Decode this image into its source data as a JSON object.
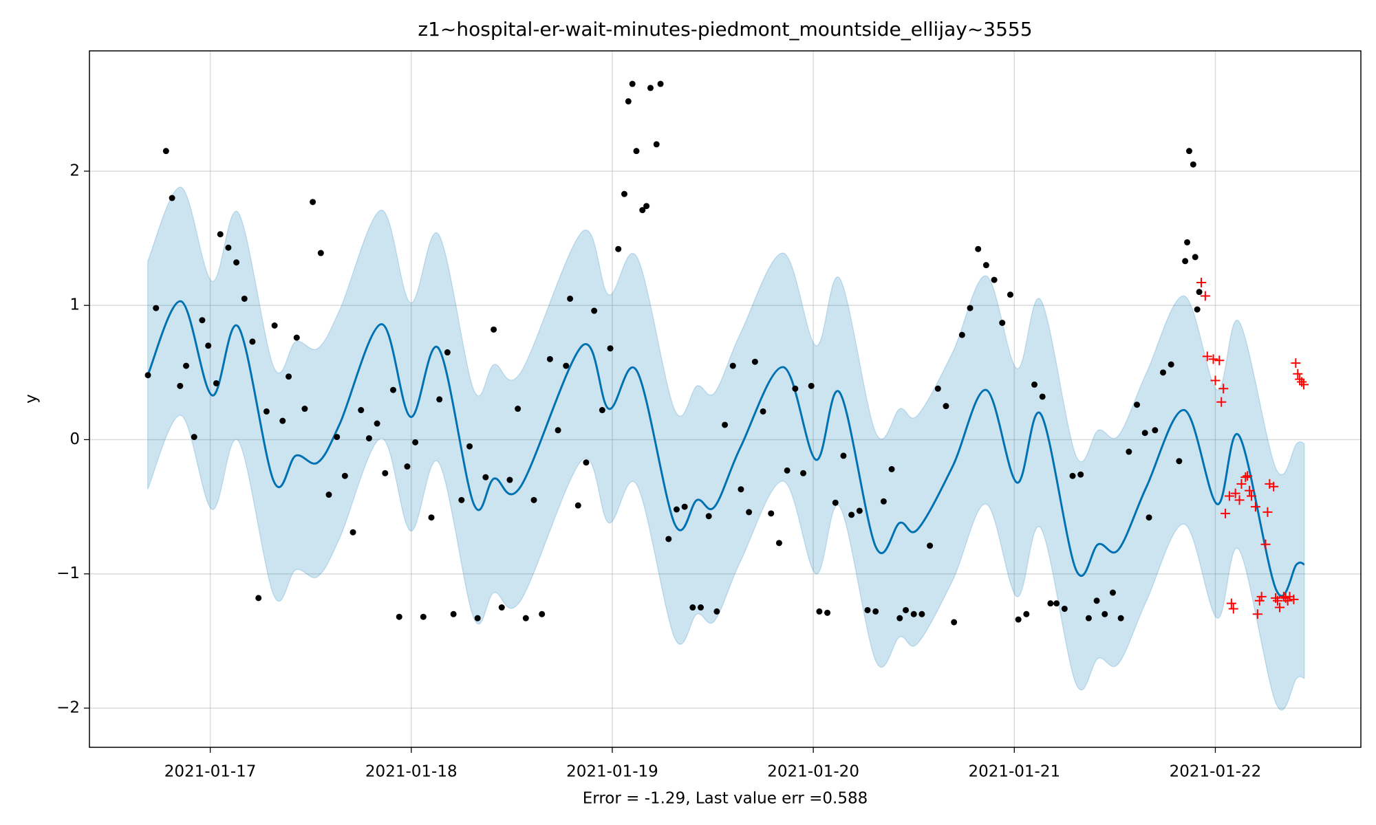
{
  "chart_data": {
    "type": "line",
    "title": "z1~hospital-er-wait-minutes-piedmont_mountside_ellijay~3555",
    "xlabel": "Error = -1.29, Last value err =0.588",
    "ylabel": "y",
    "xlim": [
      16.399,
      22.724
    ],
    "ylim": [
      -2.292,
      2.896
    ],
    "xticks": [
      {
        "value": 17,
        "label": "2021-01-17"
      },
      {
        "value": 18,
        "label": "2021-01-18"
      },
      {
        "value": 19,
        "label": "2021-01-19"
      },
      {
        "value": 20,
        "label": "2021-01-20"
      },
      {
        "value": 21,
        "label": "2021-01-21"
      },
      {
        "value": 22,
        "label": "2021-01-22"
      }
    ],
    "yticks": [
      {
        "value": -2,
        "label": "−2"
      },
      {
        "value": -1,
        "label": "−1"
      },
      0,
      1,
      2
    ],
    "grid": true,
    "series": [
      {
        "type": "band",
        "color": "#0072b2",
        "x": [
          16.689,
          16.855,
          17.009,
          17.14,
          17.316,
          17.425,
          17.535,
          17.645,
          17.851,
          17.996,
          18.136,
          18.311,
          18.412,
          18.544,
          18.851,
          18.982,
          19.123,
          19.311,
          19.421,
          19.509,
          19.64,
          19.851,
          20.013,
          20.132,
          20.311,
          20.43,
          20.518,
          20.693,
          20.86,
          21.013,
          21.132,
          21.307,
          21.417,
          21.518,
          21.658,
          21.846,
          22.009,
          22.118,
          22.303,
          22.404,
          22.443
        ],
        "upper": [
          1.33,
          1.88,
          1.18,
          1.69,
          0.54,
          0.73,
          0.68,
          0.97,
          1.71,
          1.02,
          1.53,
          0.37,
          0.56,
          0.5,
          1.55,
          1.08,
          1.36,
          0.22,
          0.4,
          0.35,
          0.8,
          1.39,
          0.7,
          1.2,
          0.05,
          0.23,
          0.18,
          0.65,
          1.22,
          0.53,
          1.04,
          -0.12,
          0.07,
          0.03,
          0.5,
          1.07,
          0.37,
          0.88,
          -0.22,
          -0.03,
          -0.03
        ],
        "lower": [
          -0.37,
          0.18,
          -0.52,
          -0.01,
          -1.16,
          -0.97,
          -1.02,
          -0.73,
          0.01,
          -0.68,
          -0.17,
          -1.33,
          -1.14,
          -1.2,
          -0.15,
          -0.62,
          -0.34,
          -1.48,
          -1.3,
          -1.35,
          -0.9,
          -0.31,
          -1.0,
          -0.5,
          -1.65,
          -1.47,
          -1.52,
          -1.05,
          -0.48,
          -1.17,
          -0.66,
          -1.82,
          -1.63,
          -1.67,
          -1.2,
          -0.63,
          -1.33,
          -0.82,
          -1.97,
          -1.78,
          -1.78
        ]
      },
      {
        "type": "line",
        "color": "#0072b2",
        "x": [
          16.689,
          16.855,
          17.009,
          17.14,
          17.316,
          17.425,
          17.535,
          17.645,
          17.851,
          17.996,
          18.136,
          18.311,
          18.412,
          18.544,
          18.851,
          18.982,
          19.123,
          19.311,
          19.421,
          19.509,
          19.64,
          19.851,
          20.013,
          20.132,
          20.311,
          20.43,
          20.518,
          20.693,
          20.86,
          21.013,
          21.132,
          21.307,
          21.417,
          21.518,
          21.658,
          21.846,
          22.009,
          22.118,
          22.303,
          22.404,
          22.443
        ],
        "values": [
          0.48,
          1.03,
          0.33,
          0.84,
          -0.31,
          -0.12,
          -0.17,
          0.12,
          0.86,
          0.17,
          0.68,
          -0.48,
          -0.29,
          -0.35,
          0.7,
          0.23,
          0.51,
          -0.63,
          -0.45,
          -0.5,
          -0.05,
          0.54,
          -0.15,
          0.35,
          -0.8,
          -0.62,
          -0.67,
          -0.2,
          0.37,
          -0.32,
          0.19,
          -0.97,
          -0.78,
          -0.82,
          -0.35,
          0.22,
          -0.48,
          0.03,
          -1.12,
          -0.93,
          -0.93
        ]
      },
      {
        "type": "scatter",
        "marker": "dot",
        "color": "#000000",
        "x": [
          16.69,
          16.73,
          16.78,
          16.81,
          16.85,
          16.88,
          16.92,
          16.96,
          16.99,
          17.03,
          17.05,
          17.09,
          17.13,
          17.17,
          17.21,
          17.24,
          17.28,
          17.32,
          17.36,
          17.39,
          17.43,
          17.47,
          17.51,
          17.55,
          17.59,
          17.63,
          17.67,
          17.71,
          17.75,
          17.79,
          17.83,
          17.87,
          17.91,
          17.94,
          17.98,
          18.02,
          18.06,
          18.1,
          18.14,
          18.18,
          18.21,
          18.25,
          18.29,
          18.33,
          18.37,
          18.41,
          18.45,
          18.49,
          18.53,
          18.57,
          18.61,
          18.65,
          18.69,
          18.73,
          18.77,
          18.79,
          18.83,
          18.87,
          18.91,
          18.95,
          18.99,
          19.03,
          19.06,
          19.08,
          19.1,
          19.12,
          19.15,
          19.17,
          19.19,
          19.22,
          19.24,
          19.28,
          19.32,
          19.36,
          19.4,
          19.44,
          19.48,
          19.52,
          19.56,
          19.6,
          19.64,
          19.68,
          19.71,
          19.75,
          19.79,
          19.83,
          19.87,
          19.91,
          19.95,
          19.99,
          20.03,
          20.07,
          20.11,
          20.15,
          20.19,
          20.23,
          20.27,
          20.31,
          20.35,
          20.39,
          20.43,
          20.46,
          20.5,
          20.54,
          20.58,
          20.62,
          20.66,
          20.7,
          20.74,
          20.78,
          20.82,
          20.86,
          20.9,
          20.94,
          20.98,
          21.02,
          21.06,
          21.1,
          21.14,
          21.18,
          21.21,
          21.25,
          21.29,
          21.33,
          21.37,
          21.41,
          21.45,
          21.49,
          21.53,
          21.57,
          21.61,
          21.65,
          21.67,
          21.7,
          21.74,
          21.78,
          21.82,
          21.85,
          21.86,
          21.87,
          21.89,
          21.9,
          21.91,
          21.92
        ],
        "values": [
          0.48,
          0.98,
          2.15,
          1.8,
          0.4,
          0.55,
          0.02,
          0.89,
          0.7,
          0.42,
          1.53,
          1.43,
          1.32,
          1.05,
          0.73,
          -1.18,
          0.21,
          0.85,
          0.14,
          0.47,
          0.76,
          0.23,
          1.77,
          1.39,
          -0.41,
          0.02,
          -0.27,
          -0.69,
          0.22,
          0.01,
          0.12,
          -0.25,
          0.37,
          -1.32,
          -0.2,
          -0.02,
          -1.32,
          -0.58,
          0.3,
          0.65,
          -1.3,
          -0.45,
          -0.05,
          -1.33,
          -0.28,
          0.82,
          -1.25,
          -0.3,
          0.23,
          -1.33,
          -0.45,
          -1.3,
          0.6,
          0.07,
          0.55,
          1.05,
          -0.49,
          -0.17,
          0.96,
          0.22,
          0.68,
          1.42,
          1.83,
          2.52,
          2.65,
          2.15,
          1.71,
          1.74,
          2.62,
          2.2,
          2.65,
          -0.74,
          -0.52,
          -0.5,
          -1.25,
          -1.25,
          -0.57,
          -1.28,
          0.11,
          0.55,
          -0.37,
          -0.54,
          0.58,
          0.21,
          -0.55,
          -0.77,
          -0.23,
          0.38,
          -0.25,
          0.4,
          -1.28,
          -1.29,
          -0.47,
          -0.12,
          -0.56,
          -0.53,
          -1.27,
          -1.28,
          -0.46,
          -0.22,
          -1.33,
          -1.27,
          -1.3,
          -1.3,
          -0.79,
          0.38,
          0.25,
          -1.36,
          0.78,
          0.98,
          1.42,
          1.3,
          1.19,
          0.87,
          1.08,
          -1.34,
          -1.3,
          0.41,
          0.32,
          -1.22,
          -1.22,
          -1.26,
          -0.27,
          -0.26,
          -1.33,
          -1.2,
          -1.3,
          -1.14,
          -1.33,
          -0.09,
          0.26,
          0.05,
          -0.58,
          0.07,
          0.5,
          0.56,
          -0.16,
          1.33,
          1.47,
          2.15,
          2.05,
          1.36,
          0.97,
          1.1
        ]
      },
      {
        "type": "scatter",
        "marker": "plus",
        "color": "#ff0000",
        "x": [
          21.93,
          21.95,
          21.96,
          21.99,
          22.0,
          22.02,
          22.03,
          22.04,
          22.05,
          22.07,
          22.08,
          22.09,
          22.1,
          22.12,
          22.13,
          22.15,
          22.16,
          22.17,
          22.18,
          22.2,
          22.21,
          22.22,
          22.23,
          22.25,
          22.26,
          22.27,
          22.29,
          22.3,
          22.31,
          22.32,
          22.34,
          22.35,
          22.36,
          22.37,
          22.39,
          22.4,
          22.41,
          22.42,
          22.43,
          22.44
        ],
        "values": [
          1.17,
          1.07,
          0.62,
          0.6,
          0.44,
          0.59,
          0.28,
          0.38,
          -0.55,
          -0.42,
          -1.22,
          -1.26,
          -0.4,
          -0.45,
          -0.33,
          -0.28,
          -0.27,
          -0.38,
          -0.42,
          -0.5,
          -1.3,
          -1.2,
          -1.17,
          -0.78,
          -0.54,
          -0.33,
          -0.35,
          -1.18,
          -1.2,
          -1.25,
          -1.17,
          -1.18,
          -1.2,
          -1.17,
          -1.19,
          0.57,
          0.49,
          0.45,
          0.43,
          0.41
        ]
      }
    ]
  }
}
